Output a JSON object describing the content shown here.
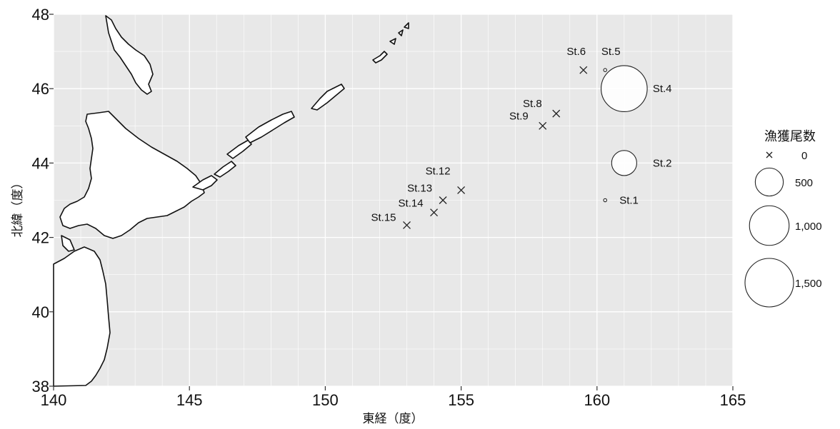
{
  "chart_data": {
    "type": "scatter",
    "xlabel": "東経（度）",
    "ylabel": "北緯（度）",
    "xlim": [
      140,
      165
    ],
    "ylim": [
      38,
      48
    ],
    "xticks": [
      140,
      145,
      150,
      155,
      160,
      165
    ],
    "yticks": [
      38,
      40,
      42,
      44,
      46,
      48
    ],
    "grid": true,
    "background": "#e8e8e8",
    "size_legend": {
      "title": "漁獲尾数",
      "entries": [
        {
          "label": "0",
          "value": 0
        },
        {
          "label": "500",
          "value": 500
        },
        {
          "label": "1,000",
          "value": 1000
        },
        {
          "label": "1,500",
          "value": 1500
        }
      ]
    },
    "stations": [
      {
        "name": "St.1",
        "lon": 160.3,
        "lat": 43.0,
        "catch": 2
      },
      {
        "name": "St.2",
        "lon": 161.0,
        "lat": 44.0,
        "catch": 400
      },
      {
        "name": "St.4",
        "lon": 161.0,
        "lat": 46.0,
        "catch": 1350
      },
      {
        "name": "St.5",
        "lon": 160.3,
        "lat": 46.5,
        "catch": 2
      },
      {
        "name": "St.6",
        "lon": 159.5,
        "lat": 46.5,
        "catch": 0
      },
      {
        "name": "St.8",
        "lon": 158.5,
        "lat": 45.33,
        "catch": 0
      },
      {
        "name": "St.9",
        "lon": 158.0,
        "lat": 45.0,
        "catch": 0
      },
      {
        "name": "St.12",
        "lon": 155.0,
        "lat": 43.27,
        "catch": 0
      },
      {
        "name": "St.13",
        "lon": 154.33,
        "lat": 43.0,
        "catch": 0
      },
      {
        "name": "St.14",
        "lon": 154.0,
        "lat": 42.67,
        "catch": 0
      },
      {
        "name": "St.15",
        "lon": 153.0,
        "lat": 42.33,
        "catch": 0
      }
    ]
  }
}
